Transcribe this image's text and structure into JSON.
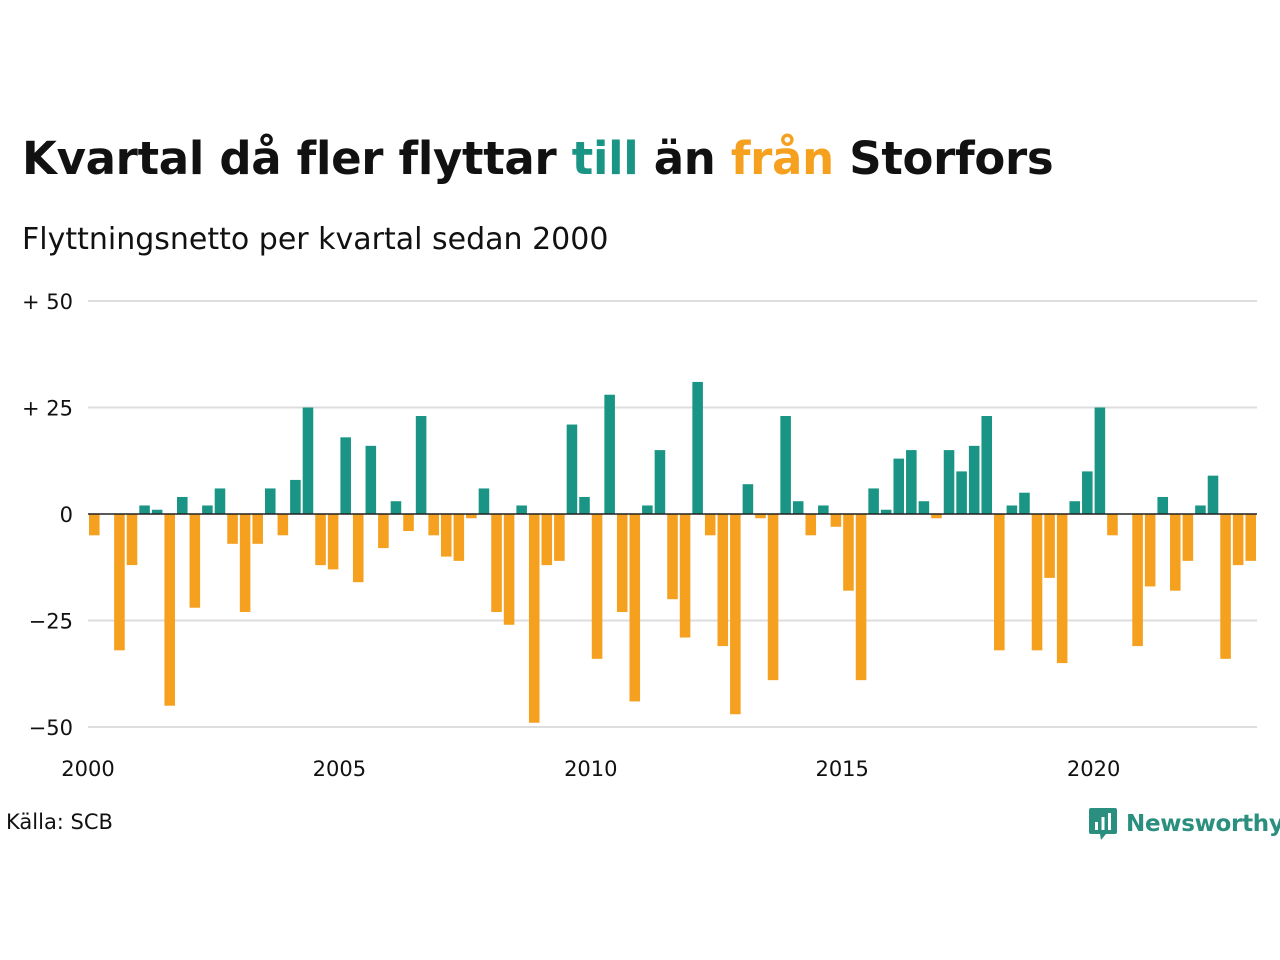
{
  "title": {
    "part1": "Kvartal då fler flyttar ",
    "part2": "till",
    "part3": " än ",
    "part4": "från",
    "part5": " Storfors"
  },
  "subtitle": "Flyttningsnetto per kvartal sedan 2000",
  "source": "Källa: SCB",
  "logo": {
    "text": "Newsworthy"
  },
  "colors": {
    "positive": "#1a9585",
    "negative": "#f5a01e",
    "grid": "#dddddd",
    "zero_line": "#222222",
    "logo": "#2a8f7e"
  },
  "chart_data": {
    "type": "bar",
    "x_start_year": 2000,
    "quarters_per_year": 4,
    "ylim": [
      -50,
      50
    ],
    "xlim": [
      2000,
      2023.25
    ],
    "y_ticks": [
      {
        "value": 50,
        "label": "+ 50"
      },
      {
        "value": 25,
        "label": "+ 25"
      },
      {
        "value": 0,
        "label": "0"
      },
      {
        "value": -25,
        "label": "−25"
      },
      {
        "value": -50,
        "label": "−50"
      }
    ],
    "x_ticks": [
      {
        "value": 2000,
        "label": "2000"
      },
      {
        "value": 2005,
        "label": "2005"
      },
      {
        "value": 2010,
        "label": "2010"
      },
      {
        "value": 2015,
        "label": "2015"
      },
      {
        "value": 2020,
        "label": "2020"
      }
    ],
    "grid": true,
    "legend": "none",
    "values": [
      -5,
      0,
      -32,
      -12,
      2,
      1,
      -45,
      4,
      -22,
      2,
      6,
      -7,
      -23,
      -7,
      6,
      -5,
      8,
      25,
      -12,
      -13,
      18,
      -16,
      16,
      -8,
      3,
      -4,
      23,
      -5,
      -10,
      -11,
      -1,
      6,
      -23,
      -26,
      2,
      -49,
      -12,
      -11,
      21,
      4,
      -34,
      28,
      -23,
      -44,
      2,
      15,
      -20,
      -29,
      31,
      -5,
      -31,
      -47,
      7,
      -1,
      -39,
      23,
      3,
      -5,
      2,
      -3,
      -18,
      -39,
      6,
      1,
      13,
      15,
      3,
      -1,
      15,
      10,
      16,
      23,
      -32,
      2,
      5,
      -32,
      -15,
      -35,
      3,
      10,
      25,
      -5,
      0,
      -31,
      -17,
      4,
      -18,
      -11,
      2,
      9,
      -34,
      -12,
      -11
    ]
  }
}
